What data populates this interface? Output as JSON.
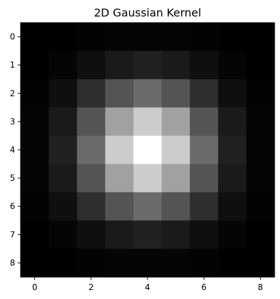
{
  "chart_data": {
    "type": "heatmap",
    "title": "2D Gaussian Kernel",
    "colormap": "gray",
    "xlabel": "",
    "ylabel": "",
    "x_ticks": [
      0,
      2,
      4,
      6,
      8
    ],
    "y_ticks": [
      0,
      1,
      2,
      3,
      4,
      5,
      6,
      7,
      8
    ],
    "x_tick_labels": [
      "0",
      "2",
      "4",
      "6",
      "8"
    ],
    "y_tick_labels": [
      "0",
      "1",
      "2",
      "3",
      "4",
      "5",
      "6",
      "7",
      "8"
    ],
    "xlim": [
      -0.5,
      8.5
    ],
    "ylim": [
      8.5,
      -0.5
    ],
    "grid": false,
    "values": [
      [
        0.0,
        0.0,
        0.01,
        0.02,
        0.02,
        0.02,
        0.01,
        0.0,
        0.0
      ],
      [
        0.0,
        0.02,
        0.06,
        0.1,
        0.13,
        0.1,
        0.06,
        0.02,
        0.0
      ],
      [
        0.01,
        0.06,
        0.18,
        0.33,
        0.42,
        0.33,
        0.18,
        0.06,
        0.01
      ],
      [
        0.02,
        0.1,
        0.33,
        0.63,
        0.8,
        0.63,
        0.33,
        0.1,
        0.02
      ],
      [
        0.02,
        0.13,
        0.42,
        0.8,
        1.0,
        0.8,
        0.42,
        0.13,
        0.02
      ],
      [
        0.02,
        0.1,
        0.33,
        0.63,
        0.8,
        0.63,
        0.33,
        0.1,
        0.02
      ],
      [
        0.01,
        0.06,
        0.18,
        0.33,
        0.42,
        0.33,
        0.18,
        0.06,
        0.01
      ],
      [
        0.0,
        0.02,
        0.06,
        0.1,
        0.13,
        0.1,
        0.06,
        0.02,
        0.0
      ],
      [
        0.0,
        0.0,
        0.01,
        0.02,
        0.02,
        0.02,
        0.01,
        0.0,
        0.0
      ]
    ]
  }
}
